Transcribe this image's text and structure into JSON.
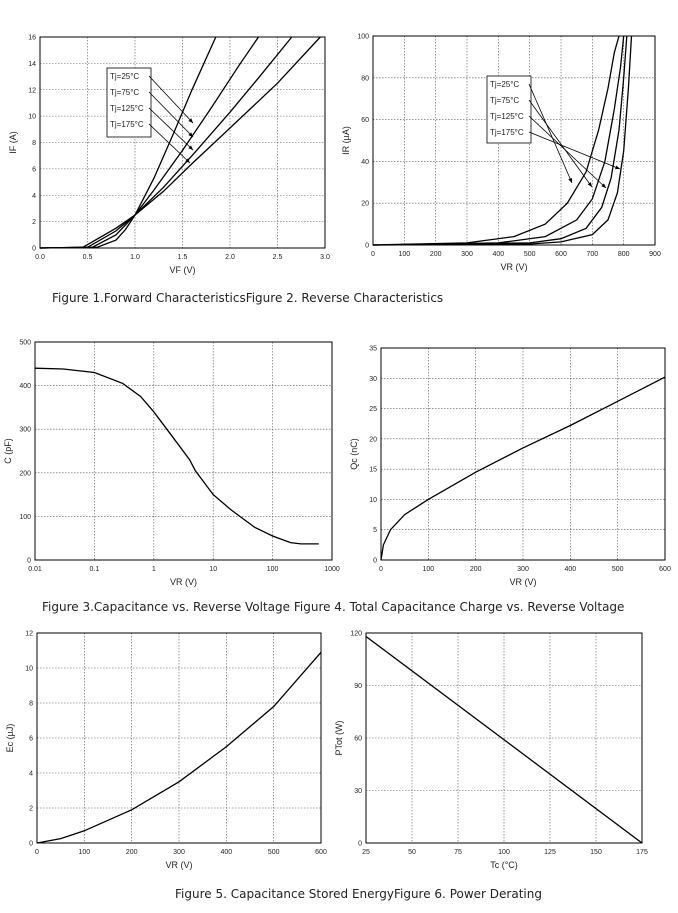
{
  "captions": [
    "Figure 1.Forward CharacteristicsFigure 2. Reverse Characteristics",
    "Figure 3.Capacitance vs. Reverse Voltage Figure 4. Total Capacitance Charge vs. Reverse Voltage",
    "Figure 5. Capacitance Stored EnergyFigure 6. Power Derating"
  ],
  "chart_data": [
    {
      "type": "line",
      "xlabel": "VF (V)",
      "ylabel": "IF (A)",
      "grid": true,
      "color": "#000000",
      "xlim": [
        0,
        3
      ],
      "xticks": [
        {
          "value": 0,
          "label": "0.0"
        },
        0.5,
        {
          "value": 1,
          "label": "1.0"
        },
        1.5,
        {
          "value": 2,
          "label": "2.0"
        },
        2.5,
        {
          "value": 3,
          "label": "3.0"
        }
      ],
      "ylim": [
        0,
        16
      ],
      "yticks": [
        0,
        2,
        4,
        6,
        8,
        10,
        12,
        14,
        16
      ],
      "series": [
        {
          "name": "Tj=25°C",
          "x": [
            0,
            0.6,
            0.8,
            0.9,
            1.0,
            1.2,
            1.4,
            1.6,
            1.85
          ],
          "values": [
            0,
            0.05,
            0.6,
            1.4,
            2.5,
            5.3,
            8.6,
            12,
            16
          ]
        },
        {
          "name": "Tj=75°C",
          "x": [
            0,
            0.55,
            0.8,
            1.0,
            1.2,
            1.5,
            1.8,
            2.1,
            2.3
          ],
          "values": [
            0,
            0.05,
            1.0,
            2.5,
            4.4,
            7.4,
            10.6,
            13.9,
            16
          ]
        },
        {
          "name": "Tj=125°C",
          "x": [
            0,
            0.5,
            0.8,
            1.0,
            1.3,
            1.6,
            2.0,
            2.3,
            2.65
          ],
          "values": [
            0,
            0.05,
            1.3,
            2.5,
            4.6,
            7.0,
            10.3,
            12.9,
            16
          ]
        },
        {
          "name": "Tj=175°C",
          "x": [
            0,
            0.45,
            0.8,
            1.0,
            1.3,
            1.6,
            2.0,
            2.5,
            2.95
          ],
          "values": [
            0,
            0.05,
            1.5,
            2.5,
            4.3,
            6.4,
            9.1,
            12.5,
            16
          ]
        }
      ]
    },
    {
      "type": "line",
      "xlabel": "VR (V)",
      "ylabel": "IR (µA)",
      "grid": true,
      "color": "#000000",
      "xlim": [
        0,
        900
      ],
      "xticks": [
        0,
        100,
        200,
        300,
        400,
        500,
        600,
        700,
        800,
        900
      ],
      "ylim": [
        0,
        100
      ],
      "yticks": [
        0,
        20,
        40,
        60,
        80,
        100
      ],
      "series": [
        {
          "name": "Tj=25°C",
          "x": [
            0,
            500,
            600,
            700,
            750,
            780,
            800,
            815,
            825
          ],
          "values": [
            0,
            0.5,
            1.5,
            5,
            12,
            25,
            45,
            75,
            100
          ]
        },
        {
          "name": "Tj=75°C",
          "x": [
            0,
            500,
            600,
            680,
            730,
            760,
            785,
            800,
            810
          ],
          "values": [
            0,
            1,
            3,
            8,
            18,
            32,
            55,
            80,
            100
          ]
        },
        {
          "name": "Tj=125°C",
          "x": [
            0,
            400,
            550,
            650,
            700,
            740,
            770,
            790,
            800
          ],
          "values": [
            0,
            1,
            4,
            12,
            22,
            40,
            65,
            85,
            100
          ]
        },
        {
          "name": "Tj=175°C",
          "x": [
            0,
            300,
            450,
            550,
            620,
            680,
            720,
            750,
            770,
            785
          ],
          "values": [
            0,
            1,
            4,
            10,
            20,
            35,
            55,
            75,
            92,
            100
          ]
        }
      ]
    },
    {
      "type": "line",
      "xlabel": "VR (V)",
      "ylabel": "C (pF)",
      "grid": true,
      "xscale": "log",
      "color": "#000000",
      "xlim": [
        0.01,
        1000
      ],
      "xticks": [
        0.01,
        0.1,
        1,
        10,
        100,
        1000
      ],
      "ylim": [
        0,
        500
      ],
      "yticks": [
        0,
        100,
        200,
        300,
        400,
        500
      ],
      "series": [
        {
          "x": [
            0.01,
            0.03,
            0.1,
            0.3,
            0.6,
            1,
            2,
            4,
            5,
            10,
            20,
            50,
            100,
            200,
            300,
            600
          ],
          "values": [
            440,
            438,
            430,
            405,
            375,
            340,
            285,
            230,
            205,
            150,
            115,
            75,
            55,
            40,
            37,
            37
          ]
        }
      ]
    },
    {
      "type": "line",
      "xlabel": "VR (V)",
      "ylabel": "Qc (nC)",
      "grid": true,
      "color": "#000000",
      "xlim": [
        0,
        600
      ],
      "xticks": [
        0,
        100,
        200,
        300,
        400,
        500,
        600
      ],
      "ylim": [
        0,
        35
      ],
      "yticks": [
        0,
        5,
        10,
        15,
        20,
        25,
        30,
        35
      ],
      "series": [
        {
          "x": [
            0,
            5,
            20,
            50,
            100,
            200,
            300,
            400,
            500,
            600
          ],
          "values": [
            0,
            2.5,
            5,
            7.5,
            10,
            14.5,
            18.5,
            22.2,
            26.2,
            30.2
          ]
        }
      ]
    },
    {
      "type": "line",
      "xlabel": "VR (V)",
      "ylabel": "Ec (µJ)",
      "grid": true,
      "color": "#000000",
      "xlim": [
        0,
        600
      ],
      "xticks": [
        0,
        100,
        200,
        300,
        400,
        500,
        600
      ],
      "ylim": [
        0,
        12
      ],
      "yticks": [
        0,
        2,
        4,
        6,
        8,
        10,
        12
      ],
      "series": [
        {
          "x": [
            0,
            50,
            100,
            200,
            300,
            400,
            500,
            600
          ],
          "values": [
            0,
            0.25,
            0.7,
            1.9,
            3.5,
            5.5,
            7.8,
            10.9
          ]
        }
      ]
    },
    {
      "type": "line",
      "xlabel": "Tc (°C)",
      "ylabel": "PTot (W)",
      "grid": true,
      "color": "#000000",
      "xlim": [
        25,
        175
      ],
      "xticks": [
        25,
        50,
        75,
        100,
        125,
        150,
        175
      ],
      "ylim": [
        0,
        120
      ],
      "yticks": [
        0,
        30,
        60,
        90,
        120
      ],
      "series": [
        {
          "x": [
            25,
            175
          ],
          "values": [
            118,
            0
          ]
        }
      ]
    }
  ]
}
